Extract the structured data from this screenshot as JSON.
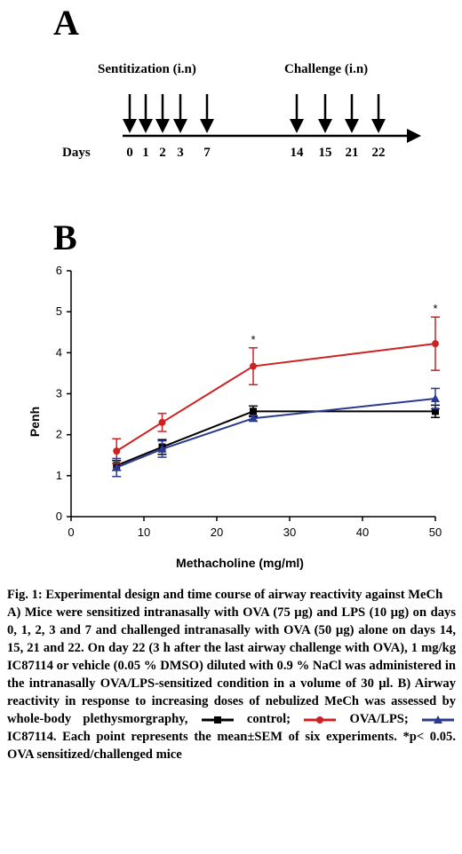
{
  "panel_a": {
    "letter": "A",
    "sensitization_label": "Sentitization  (i.n)",
    "challenge_label": "Challenge (i.n)",
    "days_label": "Days",
    "days": [
      "0",
      "1",
      "2",
      "3",
      "7",
      "14",
      "15",
      "21",
      "22"
    ]
  },
  "panel_b": {
    "letter": "B"
  },
  "chart_data": {
    "type": "line",
    "xlabel": "Methacholine (mg/ml)",
    "ylabel": "Penh",
    "xlim": [
      0,
      50
    ],
    "ylim": [
      0,
      6
    ],
    "x_ticks": [
      0,
      10,
      20,
      30,
      40,
      50
    ],
    "y_ticks": [
      0,
      1,
      2,
      3,
      4,
      5,
      6
    ],
    "x": [
      6.25,
      12.5,
      25,
      50
    ],
    "series": [
      {
        "name": "control",
        "color": "#000000",
        "marker": "square",
        "values": [
          1.25,
          1.7,
          2.57,
          2.57
        ],
        "errors": [
          0.12,
          0.18,
          0.13,
          0.15
        ]
      },
      {
        "name": "OVA/LPS",
        "color": "#cc2222",
        "marker": "circle",
        "values": [
          1.6,
          2.3,
          3.67,
          4.22
        ],
        "errors": [
          0.3,
          0.22,
          0.45,
          0.65
        ]
      },
      {
        "name": "IC87114",
        "color": "#2b3a8f",
        "marker": "triangle",
        "values": [
          1.2,
          1.65,
          2.4,
          2.88
        ],
        "errors": [
          0.22,
          0.2,
          0.07,
          0.25
        ]
      }
    ],
    "annotations": [
      {
        "x": 25,
        "text": "*"
      },
      {
        "x": 50,
        "text": "*"
      }
    ]
  },
  "caption": {
    "title": "Fig. 1: Experimental design and time course of airway reactivity against MeCh",
    "body_a": "A) Mice were sensitized intranasally with OVA (75 µg) and LPS (10 µg) on days 0, 1, 2, 3 and 7 and challenged intranasally with OVA (50 µg) alone on days 14, 15, 21 and 22. On day 22 (3 h after the last airway challenge with OVA), 1 mg/kg IC87114 or vehicle (0.05 % DMSO) diluted with 0.9 % NaCl was administered in the intranasally OVA/LPS-sensitized condition in a volume of 30 µl. B) Airway reactivity in response to increasing doses of nebulized MeCh was assessed by whole-body plethysmorgraphy,",
    "legend_control": "control;",
    "legend_ova": "OVA/LPS;",
    "body_b": "IC87114. Each point represents the mean±SEM of six experiments. *p< 0.05. OVA sensitized/challenged mice"
  }
}
